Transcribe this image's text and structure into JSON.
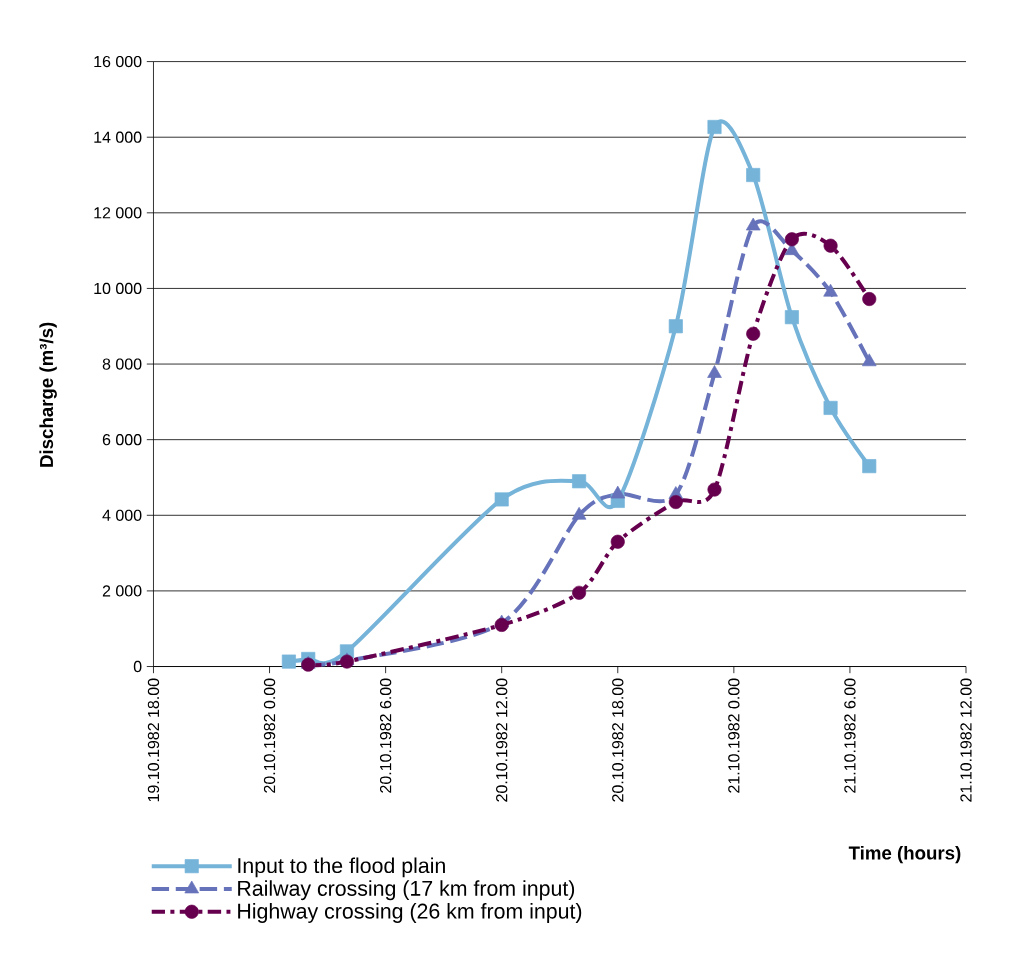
{
  "chart_data": {
    "type": "line",
    "xlabel": "Time (hours)",
    "ylabel": "Discharge (m³/s)",
    "xlim": [
      "1982-10-19T18:00",
      "1982-10-21T12:00"
    ],
    "xticks": [
      {
        "value": "1982-10-19T18:00",
        "label": "19.10.1982 18.00"
      },
      {
        "value": "1982-10-20T00:00",
        "label": "20.10.1982 0.00"
      },
      {
        "value": "1982-10-20T06:00",
        "label": "20.10.1982 6.00"
      },
      {
        "value": "1982-10-20T12:00",
        "label": "20.10.1982 12.00"
      },
      {
        "value": "1982-10-20T18:00",
        "label": "20.10.1982 18.00"
      },
      {
        "value": "1982-10-21T00:00",
        "label": "21.10.1982 0.00"
      },
      {
        "value": "1982-10-21T06:00",
        "label": "21.10.1982 6.00"
      },
      {
        "value": "1982-10-21T12:00",
        "label": "21.10.1982 12.00"
      }
    ],
    "ylim": [
      0,
      16000
    ],
    "yticks": [
      0,
      {
        "value": 2000,
        "label": "2 000"
      },
      {
        "value": 4000,
        "label": "4 000"
      },
      {
        "value": 6000,
        "label": "6 000"
      },
      {
        "value": 8000,
        "label": "8 000"
      },
      {
        "value": 10000,
        "label": "10 000"
      },
      {
        "value": 12000,
        "label": "12 000"
      },
      {
        "value": 14000,
        "label": "14 000"
      },
      {
        "value": 16000,
        "label": "16 000"
      }
    ],
    "grid": "y",
    "legend": "bottom left",
    "series": [
      {
        "name": "Input to the flood plain",
        "color": "#75b3d9",
        "marker": "square",
        "line_style": "solid",
        "x": [
          "1982-10-20T01:00",
          "1982-10-20T02:00",
          "1982-10-20T04:00",
          "1982-10-20T12:00",
          "1982-10-20T16:00",
          "1982-10-20T18:00",
          "1982-10-20T21:00",
          "1982-10-20T23:00",
          "1982-10-21T01:00",
          "1982-10-21T03:00",
          "1982-10-21T05:00",
          "1982-10-21T07:00"
        ],
        "values": [
          130,
          200,
          400,
          4420,
          4900,
          4380,
          9000,
          14270,
          13000,
          9240,
          6840,
          5300
        ]
      },
      {
        "name": "Railway crossing (17 km from input)",
        "color": "#6672b9",
        "marker": "triangle",
        "line_style": "dashed",
        "x": [
          "1982-10-20T02:00",
          "1982-10-20T04:00",
          "1982-10-20T12:00",
          "1982-10-20T16:00",
          "1982-10-20T18:00",
          "1982-10-20T21:00",
          "1982-10-20T23:00",
          "1982-10-21T01:00",
          "1982-10-21T03:00",
          "1982-10-21T05:00",
          "1982-10-21T07:00"
        ],
        "values": [
          60,
          150,
          1150,
          4000,
          4560,
          4550,
          7750,
          11650,
          11000,
          9900,
          8060
        ]
      },
      {
        "name": "Highway crossing (26 km from input)",
        "color": "#66004e",
        "marker": "circle",
        "line_style": "dashdot",
        "x": [
          "1982-10-20T02:00",
          "1982-10-20T04:00",
          "1982-10-20T12:00",
          "1982-10-20T16:00",
          "1982-10-20T18:00",
          "1982-10-20T21:00",
          "1982-10-20T23:00",
          "1982-10-21T01:00",
          "1982-10-21T03:00",
          "1982-10-21T05:00",
          "1982-10-21T07:00"
        ],
        "values": [
          50,
          130,
          1100,
          1950,
          3300,
          4350,
          4680,
          8800,
          11300,
          11130,
          9720
        ]
      }
    ]
  }
}
